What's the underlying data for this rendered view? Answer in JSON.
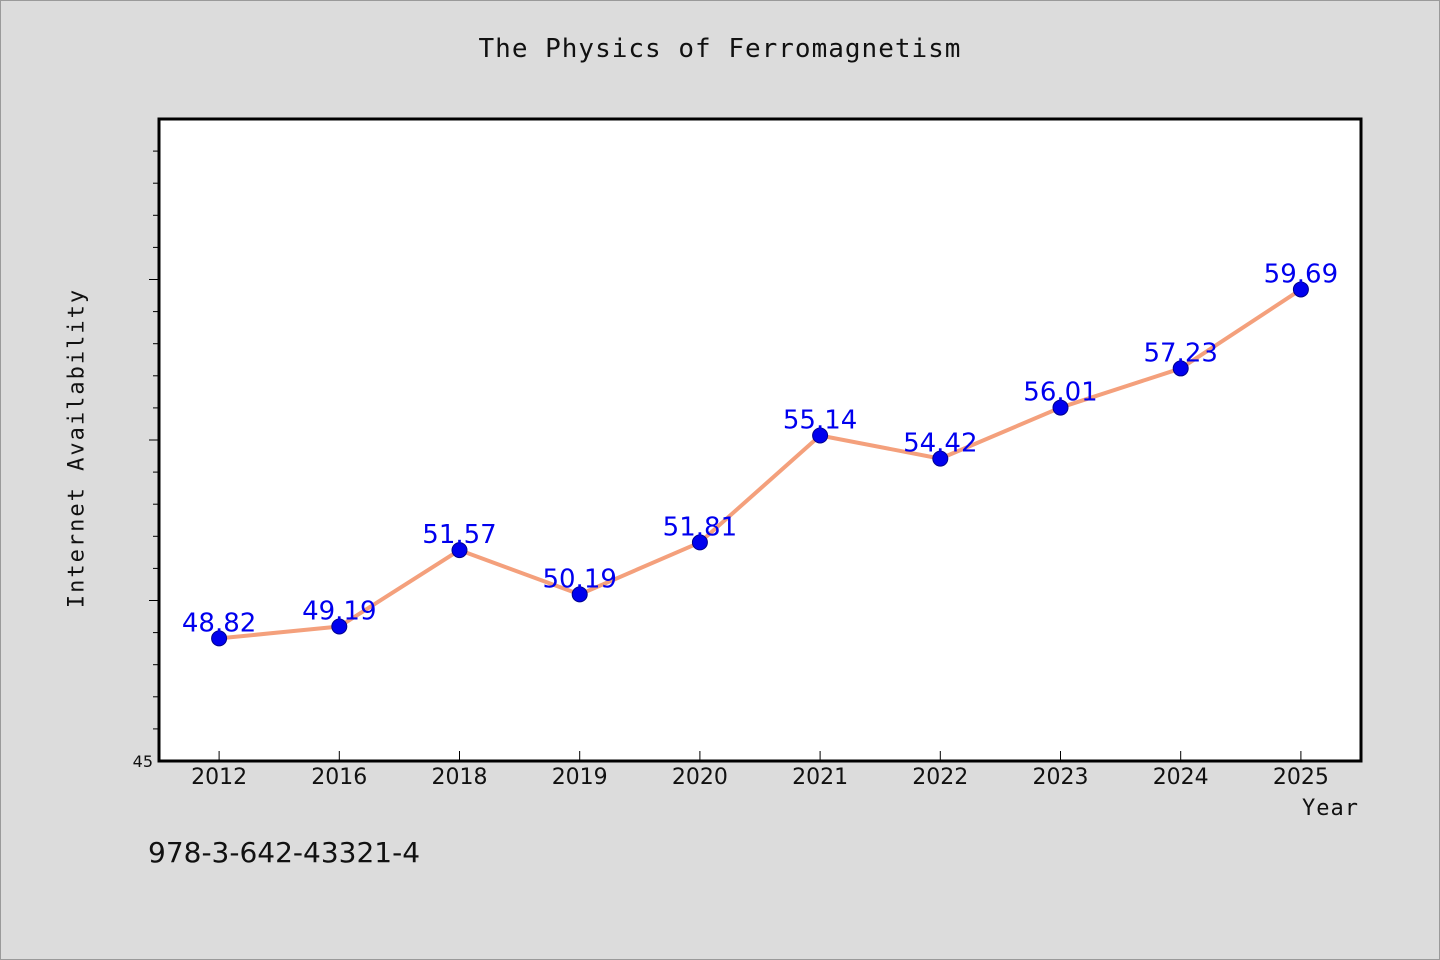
{
  "colors": {
    "background": "#dcdcdc",
    "plot_background": "#ffffff",
    "line": "#f4a07c",
    "marker": "#0000ee",
    "label": "#0000ee"
  },
  "footer": {
    "isbn": "978-3-642-43321-4"
  },
  "chart_data": {
    "type": "line",
    "title": "The Physics of Ferromagnetism",
    "xlabel": "Year",
    "ylabel": "Internet Availability",
    "categories": [
      "2012",
      "2016",
      "2018",
      "2019",
      "2020",
      "2021",
      "2022",
      "2023",
      "2024",
      "2025"
    ],
    "series": [
      {
        "values": [
          48.82,
          49.19,
          51.57,
          50.19,
          51.81,
          55.14,
          54.42,
          56.01,
          57.23,
          59.69
        ],
        "labels": [
          "48.82",
          "49.19",
          "51.57",
          "50.19",
          "51.81",
          "55.14",
          "54.42",
          "56.01",
          "57.23",
          "59.69"
        ]
      }
    ],
    "ylim": [
      45,
      65
    ],
    "y_tick_labels": [
      "45"
    ],
    "grid": false,
    "legend": "none"
  }
}
